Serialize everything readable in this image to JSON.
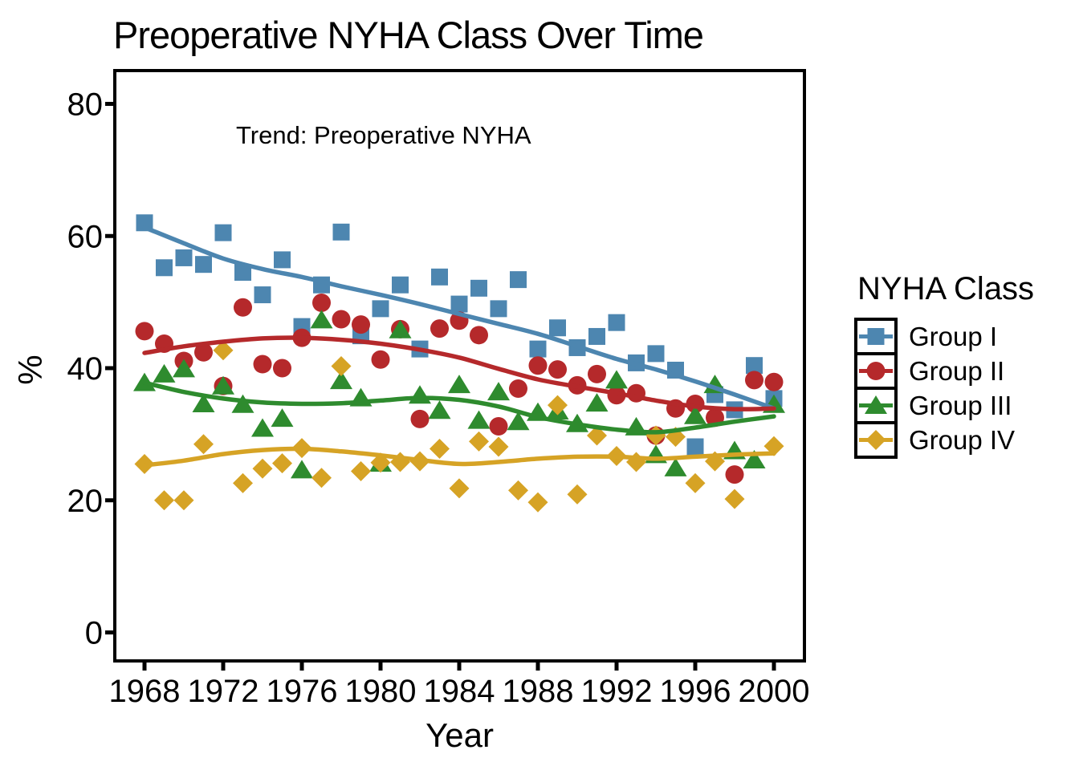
{
  "chart_data": {
    "type": "scatter",
    "title": "Preoperative NYHA Class Over Time",
    "annotation": "Trend: Preoperative NYHA",
    "xlabel": "Year",
    "ylabel": "%",
    "x_ticks": [
      1968,
      1972,
      1976,
      1980,
      1984,
      1988,
      1992,
      1996,
      2000
    ],
    "y_ticks": [
      0,
      20,
      40,
      60,
      80
    ],
    "xlim": [
      1966.5,
      2001.5
    ],
    "ylim": [
      -4.2,
      85
    ],
    "grid": false,
    "panel_border": true,
    "legend": {
      "title": "NYHA Class",
      "position": "right",
      "entries": [
        "Group I",
        "Group II",
        "Group III",
        "Group IV"
      ]
    },
    "series": [
      {
        "name": "Group I",
        "marker": "square",
        "color": "#4D86B0",
        "points": [
          [
            1968,
            62.0
          ],
          [
            1969,
            55.2
          ],
          [
            1970,
            56.7
          ],
          [
            1971,
            55.7
          ],
          [
            1972,
            60.5
          ],
          [
            1973,
            54.5
          ],
          [
            1974,
            51.1
          ],
          [
            1975,
            56.4
          ],
          [
            1976,
            46.3
          ],
          [
            1977,
            52.6
          ],
          [
            1978,
            60.6
          ],
          [
            1979,
            44.9
          ],
          [
            1980,
            49.0
          ],
          [
            1981,
            52.6
          ],
          [
            1982,
            42.9
          ],
          [
            1983,
            53.8
          ],
          [
            1984,
            49.7
          ],
          [
            1985,
            52.1
          ],
          [
            1986,
            49.0
          ],
          [
            1987,
            53.4
          ],
          [
            1988,
            42.9
          ],
          [
            1989,
            46.1
          ],
          [
            1990,
            43.1
          ],
          [
            1991,
            44.8
          ],
          [
            1992,
            46.9
          ],
          [
            1993,
            40.8
          ],
          [
            1994,
            42.2
          ],
          [
            1995,
            39.7
          ],
          [
            1996,
            28.1
          ],
          [
            1997,
            36.0
          ],
          [
            1998,
            33.7
          ],
          [
            1999,
            40.4
          ],
          [
            2000,
            35.4
          ]
        ],
        "trend": [
          [
            1968,
            61.3
          ],
          [
            1970,
            58.9
          ],
          [
            1972,
            56.6
          ],
          [
            1974,
            55.0
          ],
          [
            1976,
            53.8
          ],
          [
            1978,
            52.4
          ],
          [
            1980,
            51.1
          ],
          [
            1982,
            49.7
          ],
          [
            1984,
            48.2
          ],
          [
            1986,
            46.7
          ],
          [
            1988,
            45.2
          ],
          [
            1990,
            43.3
          ],
          [
            1992,
            41.4
          ],
          [
            1994,
            39.8
          ],
          [
            1996,
            38.0
          ],
          [
            1998,
            36.0
          ],
          [
            2000,
            33.9
          ]
        ]
      },
      {
        "name": "Group II",
        "marker": "circle",
        "color": "#B5292B",
        "points": [
          [
            1968,
            45.6
          ],
          [
            1969,
            43.7
          ],
          [
            1970,
            41.1
          ],
          [
            1971,
            42.4
          ],
          [
            1972,
            37.3
          ],
          [
            1973,
            49.2
          ],
          [
            1974,
            40.6
          ],
          [
            1975,
            40.0
          ],
          [
            1976,
            44.6
          ],
          [
            1977,
            49.9
          ],
          [
            1978,
            47.4
          ],
          [
            1979,
            46.6
          ],
          [
            1980,
            41.3
          ],
          [
            1981,
            45.9
          ],
          [
            1982,
            32.3
          ],
          [
            1983,
            46.0
          ],
          [
            1984,
            47.2
          ],
          [
            1985,
            45.0
          ],
          [
            1986,
            31.2
          ],
          [
            1987,
            36.9
          ],
          [
            1988,
            40.4
          ],
          [
            1989,
            39.8
          ],
          [
            1990,
            37.4
          ],
          [
            1991,
            39.1
          ],
          [
            1992,
            35.9
          ],
          [
            1993,
            36.2
          ],
          [
            1994,
            29.8
          ],
          [
            1995,
            33.9
          ],
          [
            1996,
            34.6
          ],
          [
            1997,
            32.5
          ],
          [
            1998,
            23.9
          ],
          [
            1999,
            38.2
          ],
          [
            2000,
            37.9
          ]
        ],
        "trend": [
          [
            1968,
            42.3
          ],
          [
            1970,
            43.3
          ],
          [
            1972,
            44.0
          ],
          [
            1974,
            44.5
          ],
          [
            1976,
            44.6
          ],
          [
            1978,
            44.3
          ],
          [
            1980,
            43.7
          ],
          [
            1982,
            42.8
          ],
          [
            1984,
            41.6
          ],
          [
            1986,
            39.9
          ],
          [
            1988,
            38.3
          ],
          [
            1990,
            37.2
          ],
          [
            1992,
            36.2
          ],
          [
            1994,
            35.1
          ],
          [
            1996,
            34.2
          ],
          [
            1998,
            33.8
          ],
          [
            2000,
            33.9
          ]
        ]
      },
      {
        "name": "Group III",
        "marker": "triangle",
        "color": "#2E8B2E",
        "points": [
          [
            1968,
            37.8
          ],
          [
            1969,
            39.1
          ],
          [
            1970,
            39.9
          ],
          [
            1971,
            34.6
          ],
          [
            1972,
            37.3
          ],
          [
            1973,
            34.5
          ],
          [
            1974,
            30.9
          ],
          [
            1975,
            32.4
          ],
          [
            1976,
            24.6
          ],
          [
            1977,
            47.3
          ],
          [
            1978,
            38.1
          ],
          [
            1979,
            35.5
          ],
          [
            1980,
            25.6
          ],
          [
            1981,
            45.8
          ],
          [
            1982,
            35.9
          ],
          [
            1983,
            33.6
          ],
          [
            1984,
            37.5
          ],
          [
            1985,
            32.1
          ],
          [
            1986,
            36.4
          ],
          [
            1987,
            31.9
          ],
          [
            1988,
            33.3
          ],
          [
            1989,
            33.5
          ],
          [
            1990,
            31.6
          ],
          [
            1991,
            34.7
          ],
          [
            1992,
            38.2
          ],
          [
            1993,
            31.1
          ],
          [
            1994,
            26.9
          ],
          [
            1995,
            24.9
          ],
          [
            1996,
            32.8
          ],
          [
            1997,
            37.5
          ],
          [
            1998,
            27.5
          ],
          [
            1999,
            26.1
          ],
          [
            2000,
            34.5
          ]
        ],
        "trend": [
          [
            1968,
            37.8
          ],
          [
            1970,
            36.4
          ],
          [
            1972,
            35.4
          ],
          [
            1974,
            34.8
          ],
          [
            1976,
            34.6
          ],
          [
            1978,
            34.7
          ],
          [
            1980,
            35.1
          ],
          [
            1982,
            35.5
          ],
          [
            1984,
            35.2
          ],
          [
            1986,
            34.2
          ],
          [
            1988,
            32.6
          ],
          [
            1990,
            31.5
          ],
          [
            1992,
            30.7
          ],
          [
            1994,
            30.3
          ],
          [
            1996,
            31.0
          ],
          [
            1998,
            31.9
          ],
          [
            2000,
            32.7
          ]
        ]
      },
      {
        "name": "Group IV",
        "marker": "diamond",
        "color": "#D6A325",
        "points": [
          [
            1968,
            25.5
          ],
          [
            1969,
            20.0
          ],
          [
            1970,
            20.0
          ],
          [
            1971,
            28.5
          ],
          [
            1972,
            42.7
          ],
          [
            1973,
            22.6
          ],
          [
            1974,
            24.8
          ],
          [
            1975,
            25.6
          ],
          [
            1976,
            27.9
          ],
          [
            1977,
            23.4
          ],
          [
            1978,
            40.3
          ],
          [
            1979,
            24.4
          ],
          [
            1980,
            25.7
          ],
          [
            1981,
            25.8
          ],
          [
            1982,
            25.9
          ],
          [
            1983,
            27.8
          ],
          [
            1984,
            21.8
          ],
          [
            1985,
            28.9
          ],
          [
            1986,
            28.1
          ],
          [
            1987,
            21.5
          ],
          [
            1988,
            19.7
          ],
          [
            1989,
            34.4
          ],
          [
            1990,
            20.9
          ],
          [
            1991,
            29.8
          ],
          [
            1992,
            26.7
          ],
          [
            1993,
            25.8
          ],
          [
            1994,
            29.8
          ],
          [
            1995,
            29.6
          ],
          [
            1996,
            22.6
          ],
          [
            1997,
            25.9
          ],
          [
            1998,
            20.2
          ],
          [
            2000,
            28.2
          ]
        ],
        "trend": [
          [
            1968,
            25.3
          ],
          [
            1970,
            26.0
          ],
          [
            1972,
            27.0
          ],
          [
            1974,
            27.6
          ],
          [
            1976,
            27.8
          ],
          [
            1978,
            27.4
          ],
          [
            1980,
            26.8
          ],
          [
            1982,
            26.1
          ],
          [
            1984,
            25.5
          ],
          [
            1986,
            25.8
          ],
          [
            1988,
            26.3
          ],
          [
            1990,
            26.6
          ],
          [
            1992,
            26.6
          ],
          [
            1994,
            26.3
          ],
          [
            1996,
            26.6
          ],
          [
            1998,
            26.9
          ],
          [
            2000,
            27.1
          ]
        ]
      }
    ]
  }
}
